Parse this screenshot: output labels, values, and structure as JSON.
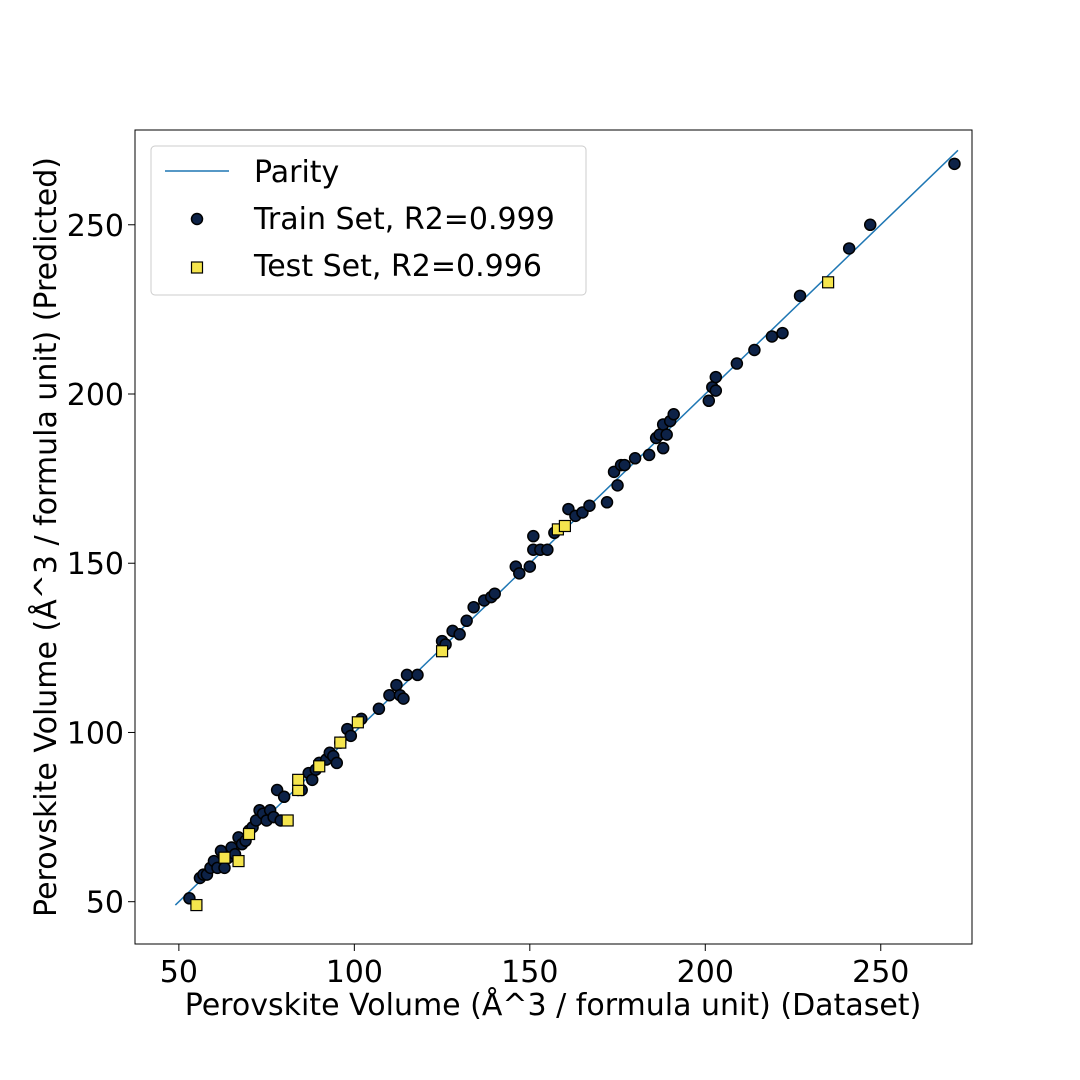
{
  "chart_data": {
    "type": "scatter",
    "title": "",
    "xlabel": "Perovskite Volume (Å^3 / formula unit) (Dataset)",
    "ylabel": "Perovskite Volume (Å^3 / formula unit) (Predicted)",
    "xlim": [
      37.5,
      276
    ],
    "ylim": [
      37.5,
      278
    ],
    "xticks": [
      50,
      100,
      150,
      200,
      250
    ],
    "yticks": [
      50,
      100,
      150,
      200,
      250
    ],
    "grid": false,
    "legend_position": "upper-left",
    "parity": {
      "name": "Parity",
      "color": "#1f77b4",
      "x": [
        49,
        272
      ],
      "y": [
        49,
        272
      ]
    },
    "series": [
      {
        "name": "Train Set, R2=0.999",
        "marker": "circle",
        "color": "#0d2247",
        "edge": "#000000",
        "points": [
          [
            53,
            51
          ],
          [
            56,
            57
          ],
          [
            57,
            58
          ],
          [
            58,
            58
          ],
          [
            59,
            60
          ],
          [
            60,
            62
          ],
          [
            61,
            60
          ],
          [
            62,
            65
          ],
          [
            63,
            60
          ],
          [
            64,
            63
          ],
          [
            65,
            66
          ],
          [
            66,
            64
          ],
          [
            67,
            69
          ],
          [
            68,
            67
          ],
          [
            69,
            68
          ],
          [
            70,
            71
          ],
          [
            71,
            72
          ],
          [
            72,
            74
          ],
          [
            73,
            77
          ],
          [
            74,
            76
          ],
          [
            75,
            74
          ],
          [
            76,
            77
          ],
          [
            77,
            75
          ],
          [
            78,
            83
          ],
          [
            79,
            74
          ],
          [
            80,
            81
          ],
          [
            84,
            83
          ],
          [
            85,
            83
          ],
          [
            87,
            88
          ],
          [
            88,
            86
          ],
          [
            89,
            89
          ],
          [
            90,
            91
          ],
          [
            92,
            92
          ],
          [
            93,
            94
          ],
          [
            94,
            93
          ],
          [
            95,
            91
          ],
          [
            96,
            97
          ],
          [
            98,
            101
          ],
          [
            99,
            99
          ],
          [
            102,
            104
          ],
          [
            107,
            107
          ],
          [
            110,
            111
          ],
          [
            112,
            114
          ],
          [
            113,
            111
          ],
          [
            114,
            110
          ],
          [
            115,
            117
          ],
          [
            118,
            117
          ],
          [
            125,
            127
          ],
          [
            126,
            126
          ],
          [
            128,
            130
          ],
          [
            130,
            129
          ],
          [
            132,
            133
          ],
          [
            134,
            137
          ],
          [
            137,
            139
          ],
          [
            139,
            140
          ],
          [
            140,
            141
          ],
          [
            146,
            149
          ],
          [
            147,
            147
          ],
          [
            150,
            149
          ],
          [
            151,
            158
          ],
          [
            151,
            154
          ],
          [
            153,
            154
          ],
          [
            155,
            154
          ],
          [
            157,
            159
          ],
          [
            161,
            166
          ],
          [
            163,
            164
          ],
          [
            165,
            165
          ],
          [
            167,
            167
          ],
          [
            172,
            168
          ],
          [
            174,
            177
          ],
          [
            175,
            173
          ],
          [
            176,
            179
          ],
          [
            177,
            179
          ],
          [
            180,
            181
          ],
          [
            184,
            182
          ],
          [
            186,
            187
          ],
          [
            187,
            188
          ],
          [
            188,
            184
          ],
          [
            188,
            191
          ],
          [
            189,
            188
          ],
          [
            190,
            192
          ],
          [
            191,
            194
          ],
          [
            201,
            198
          ],
          [
            202,
            202
          ],
          [
            203,
            205
          ],
          [
            203,
            201
          ],
          [
            209,
            209
          ],
          [
            214,
            213
          ],
          [
            219,
            217
          ],
          [
            222,
            218
          ],
          [
            227,
            229
          ],
          [
            241,
            243
          ],
          [
            247,
            250
          ],
          [
            271,
            268
          ]
        ]
      },
      {
        "name": "Test Set, R2=0.996",
        "marker": "square",
        "color": "#f5e54d",
        "edge": "#000000",
        "points": [
          [
            55,
            49
          ],
          [
            63,
            63
          ],
          [
            67,
            62
          ],
          [
            70,
            70
          ],
          [
            81,
            74
          ],
          [
            84,
            83
          ],
          [
            84,
            86
          ],
          [
            90,
            90
          ],
          [
            96,
            97
          ],
          [
            101,
            103
          ],
          [
            125,
            124
          ],
          [
            158,
            160
          ],
          [
            160,
            161
          ],
          [
            235,
            233
          ]
        ]
      }
    ]
  }
}
